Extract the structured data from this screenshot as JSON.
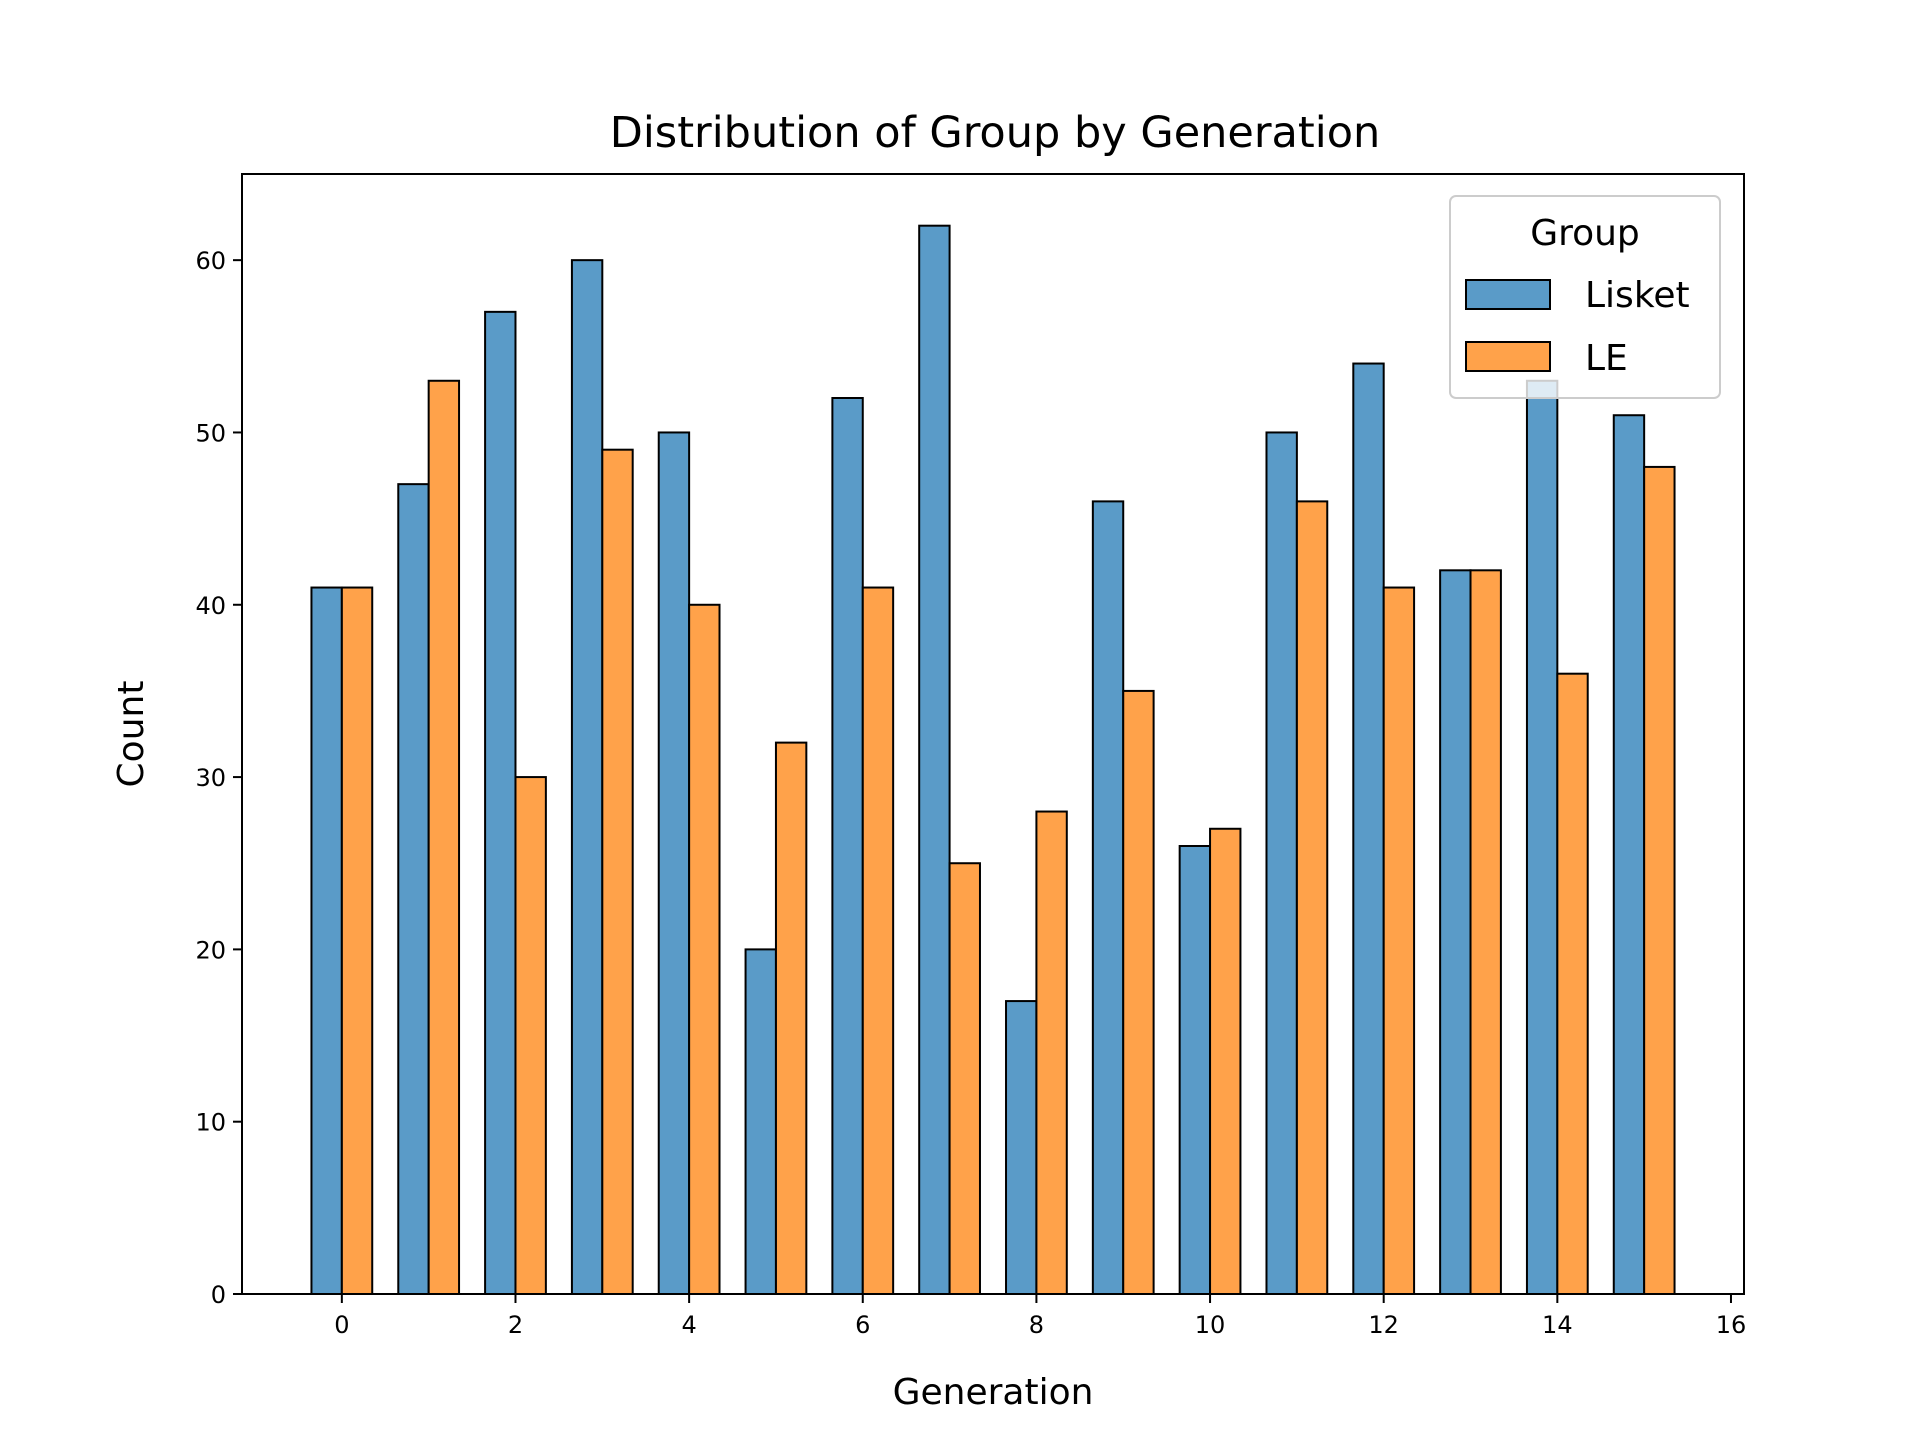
{
  "chart_data": {
    "type": "bar",
    "title": "Distribution of Group by Generation",
    "xlabel": "Generation",
    "ylabel": "Count",
    "x": [
      0,
      1,
      2,
      3,
      4,
      5,
      6,
      7,
      8,
      9,
      10,
      11,
      12,
      13,
      14,
      15
    ],
    "xlim": [
      -1.15,
      16.15
    ],
    "ylim": [
      0,
      65
    ],
    "xticks": [
      0,
      2,
      4,
      6,
      8,
      10,
      12,
      14,
      16
    ],
    "yticks": [
      0,
      10,
      20,
      30,
      40,
      50,
      60
    ],
    "grid": false,
    "legend": {
      "title": "Group",
      "placement": "top-right"
    },
    "series": [
      {
        "name": "Lisket",
        "color": "#5a9bc8",
        "values": [
          41,
          47,
          57,
          60,
          50,
          20,
          52,
          62,
          17,
          46,
          26,
          50,
          54,
          42,
          53,
          51
        ]
      },
      {
        "name": "LE",
        "color": "#ffa24a",
        "values": [
          41,
          53,
          30,
          49,
          40,
          32,
          41,
          25,
          28,
          35,
          27,
          46,
          41,
          42,
          36,
          48
        ]
      }
    ]
  }
}
